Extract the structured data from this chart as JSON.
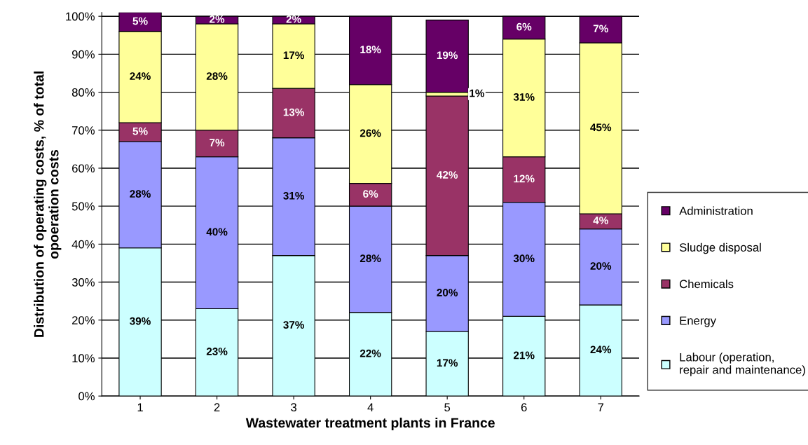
{
  "chart_data": {
    "type": "bar",
    "stacked": true,
    "xlabel": "Wastewater treatment plants in France",
    "ylabel": "Distribution of operating costs, % of total\nopoeration costs",
    "categories": [
      "1",
      "2",
      "3",
      "4",
      "5",
      "6",
      "7"
    ],
    "series": [
      {
        "name": "Labour (operation,\nrepair and maintenance)",
        "color": "#ccffff",
        "values": [
          39,
          23,
          37,
          22,
          17,
          21,
          24
        ],
        "value_labels": [
          "39%",
          "23%",
          "37%",
          "22%",
          "17%",
          "21%",
          "24%"
        ]
      },
      {
        "name": "Energy",
        "color": "#9999ff",
        "values": [
          28,
          40,
          31,
          28,
          20,
          30,
          20
        ],
        "value_labels": [
          "28%",
          "40%",
          "31%",
          "28%",
          "20%",
          "30%",
          "20%"
        ]
      },
      {
        "name": "Chemicals",
        "color": "#993366",
        "values": [
          5,
          7,
          13,
          6,
          42,
          12,
          4
        ],
        "value_labels": [
          "5%",
          "7%",
          "13%",
          "6%",
          "42%",
          "12%",
          "4%"
        ]
      },
      {
        "name": "Sludge disposal",
        "color": "#ffff99",
        "values": [
          24,
          28,
          17,
          26,
          1,
          31,
          45
        ],
        "value_labels": [
          "24%",
          "28%",
          "17%",
          "26%",
          "1%",
          "31%",
          "45%"
        ]
      },
      {
        "name": "Administration",
        "color": "#660066",
        "values": [
          5,
          2,
          2,
          18,
          19,
          6,
          7
        ],
        "value_labels": [
          "5%",
          "2%",
          "2%",
          "18%",
          "19%",
          "6%",
          "7%"
        ]
      }
    ],
    "ylim": [
      0,
      101
    ],
    "yticks": [
      {
        "value": 0,
        "label": "0%"
      },
      {
        "value": 10,
        "label": "10%"
      },
      {
        "value": 20,
        "label": "20%"
      },
      {
        "value": 30,
        "label": "30%"
      },
      {
        "value": 40,
        "label": "40%"
      },
      {
        "value": 50,
        "label": "50%"
      },
      {
        "value": 60,
        "label": "60%"
      },
      {
        "value": 70,
        "label": "70%"
      },
      {
        "value": 80,
        "label": "80%"
      },
      {
        "value": 90,
        "label": "90%"
      },
      {
        "value": 100,
        "label": "100%"
      }
    ],
    "grid": "y",
    "legend": "right"
  }
}
